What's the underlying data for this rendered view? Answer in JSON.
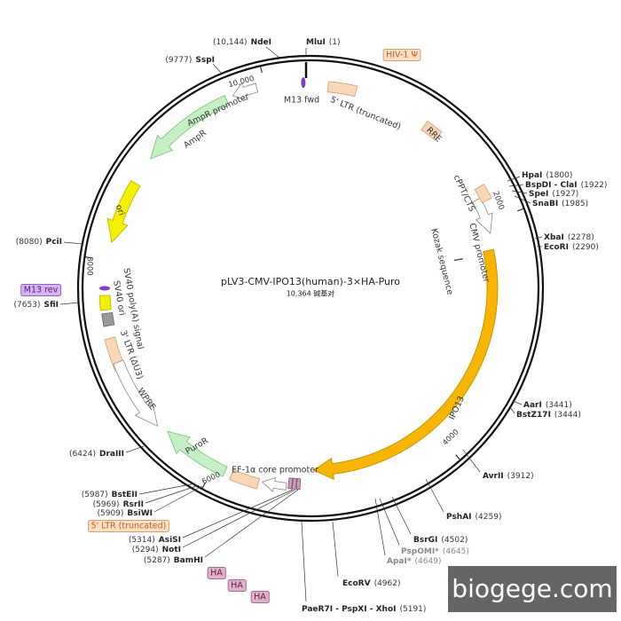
{
  "map": {
    "title": "pLV3-CMV-IPO13(human)-3×HA-Puro",
    "size": "10,364 碱基对"
  },
  "sites": [
    {
      "name": "NdeI",
      "position": "(10,144)"
    },
    {
      "name": "MluI",
      "position": "(1)"
    },
    {
      "name": "SspI",
      "position": "(9777)"
    },
    {
      "name": "HpaI",
      "position": "(1800)"
    },
    {
      "name": "BspDI - ClaI",
      "position": "(1922)"
    },
    {
      "name": "SpeI",
      "position": "(1927)"
    },
    {
      "name": "SnaBI",
      "position": "(1985)"
    },
    {
      "name": "XbaI",
      "position": "(2278)"
    },
    {
      "name": "EcoRI",
      "position": "(2290)"
    },
    {
      "name": "PciI",
      "position": "(8080)"
    },
    {
      "name": "SfiI",
      "position": "(7653)"
    },
    {
      "name": "AarI",
      "position": "(3441)"
    },
    {
      "name": "BstZ17I",
      "position": "(3444)"
    },
    {
      "name": "AvrII",
      "position": "(3912)"
    },
    {
      "name": "PshAI",
      "position": "(4259)"
    },
    {
      "name": "BsrGI",
      "position": "(4502)"
    },
    {
      "name": "PspOMI*",
      "position": "(4645)"
    },
    {
      "name": "ApaI*",
      "position": "(4649)"
    },
    {
      "name": "EcoRV",
      "position": "(4962)"
    },
    {
      "name": "PaeR7I - PspXI - XhoI",
      "position": "(5191)"
    },
    {
      "name": "DraIII",
      "position": "(6424)"
    },
    {
      "name": "BstEII",
      "position": "(5987)"
    },
    {
      "name": "RsrII",
      "position": "(5969)"
    },
    {
      "name": "BsiWI",
      "position": "(5909)"
    },
    {
      "name": "AsiSI",
      "position": "(5314)"
    },
    {
      "name": "NotI",
      "position": "(5294)"
    },
    {
      "name": "BamHI",
      "position": "(5287)"
    }
  ],
  "features": [
    "HIV-1 Ψ",
    "M13 fwd",
    "5' LTR (truncated)",
    "RRE",
    "AmpR promoter",
    "AmpR",
    "ori",
    "cPPT/CTS",
    "CMV promoter",
    "Kozak sequence",
    "M13 rev",
    "SV40 poly(A) signal",
    "SV40 ori",
    "3' LTR (ΔU3)",
    "WPRE",
    "PuroR",
    "EF-1α core promoter",
    "IPO13",
    "5' LTR (truncated)",
    "HA",
    "HA",
    "HA"
  ],
  "ticks": [
    "10,000",
    "8000",
    "6000",
    "4000",
    "2000"
  ],
  "watermark": "biogege.com"
}
